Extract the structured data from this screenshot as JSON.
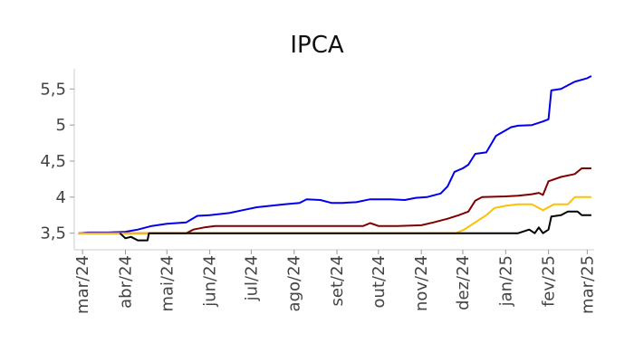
{
  "chart_data": {
    "type": "line",
    "title": "IPCA",
    "xlabel": "",
    "ylabel": "",
    "x_ticks": [
      "mar/24",
      "abr/24",
      "mai/24",
      "jun/24",
      "jul/24",
      "ago/24",
      "set/24",
      "out/24",
      "nov/24",
      "dez/24",
      "jan/25",
      "fev/25",
      "mar/25"
    ],
    "y_ticks": [
      {
        "value": 3.5,
        "label": "3,5"
      },
      {
        "value": 4.0,
        "label": "4"
      },
      {
        "value": 4.5,
        "label": "4,5"
      },
      {
        "value": 5.0,
        "label": "5"
      },
      {
        "value": 5.5,
        "label": "5,5"
      }
    ],
    "xlim": [
      "2024-02-24",
      "2025-03-06"
    ],
    "ylim": [
      3.27,
      5.78
    ],
    "grid": false,
    "legend": "none",
    "series": [
      {
        "color": "#0000ee",
        "points": [
          [
            "2024-02-27",
            3.5
          ],
          [
            "2024-03-05",
            3.51
          ],
          [
            "2024-03-20",
            3.51
          ],
          [
            "2024-04-01",
            3.52
          ],
          [
            "2024-04-10",
            3.55
          ],
          [
            "2024-04-20",
            3.6
          ],
          [
            "2024-05-01",
            3.63
          ],
          [
            "2024-05-15",
            3.65
          ],
          [
            "2024-05-23",
            3.74
          ],
          [
            "2024-06-01",
            3.75
          ],
          [
            "2024-06-15",
            3.78
          ],
          [
            "2024-06-25",
            3.82
          ],
          [
            "2024-07-05",
            3.86
          ],
          [
            "2024-07-15",
            3.88
          ],
          [
            "2024-07-25",
            3.9
          ],
          [
            "2024-08-05",
            3.92
          ],
          [
            "2024-08-10",
            3.97
          ],
          [
            "2024-08-20",
            3.96
          ],
          [
            "2024-08-28",
            3.92
          ],
          [
            "2024-09-05",
            3.92
          ],
          [
            "2024-09-15",
            3.93
          ],
          [
            "2024-09-25",
            3.97
          ],
          [
            "2024-10-10",
            3.97
          ],
          [
            "2024-10-20",
            3.96
          ],
          [
            "2024-10-28",
            3.99
          ],
          [
            "2024-11-05",
            4.0
          ],
          [
            "2024-11-15",
            4.05
          ],
          [
            "2024-11-20",
            4.15
          ],
          [
            "2024-11-25",
            4.35
          ],
          [
            "2024-12-01",
            4.4
          ],
          [
            "2024-12-05",
            4.45
          ],
          [
            "2024-12-10",
            4.6
          ],
          [
            "2024-12-18",
            4.62
          ],
          [
            "2024-12-25",
            4.85
          ],
          [
            "2025-01-05",
            4.97
          ],
          [
            "2025-01-10",
            4.99
          ],
          [
            "2025-01-20",
            5.0
          ],
          [
            "2025-01-28",
            5.05
          ],
          [
            "2025-02-01",
            5.08
          ],
          [
            "2025-02-03",
            5.48
          ],
          [
            "2025-02-10",
            5.5
          ],
          [
            "2025-02-15",
            5.55
          ],
          [
            "2025-02-20",
            5.6
          ],
          [
            "2025-03-01",
            5.65
          ],
          [
            "2025-03-04",
            5.68
          ]
        ]
      },
      {
        "color": "#800000",
        "points": [
          [
            "2024-02-27",
            3.5
          ],
          [
            "2024-05-01",
            3.5
          ],
          [
            "2024-05-15",
            3.5
          ],
          [
            "2024-05-20",
            3.55
          ],
          [
            "2024-05-28",
            3.58
          ],
          [
            "2024-06-05",
            3.6
          ],
          [
            "2024-06-15",
            3.6
          ],
          [
            "2024-07-01",
            3.6
          ],
          [
            "2024-08-01",
            3.6
          ],
          [
            "2024-09-01",
            3.6
          ],
          [
            "2024-09-20",
            3.6
          ],
          [
            "2024-09-25",
            3.64
          ],
          [
            "2024-10-01",
            3.6
          ],
          [
            "2024-10-15",
            3.6
          ],
          [
            "2024-11-01",
            3.61
          ],
          [
            "2024-11-10",
            3.65
          ],
          [
            "2024-11-20",
            3.7
          ],
          [
            "2024-11-28",
            3.75
          ],
          [
            "2024-12-05",
            3.8
          ],
          [
            "2024-12-10",
            3.95
          ],
          [
            "2024-12-15",
            4.0
          ],
          [
            "2025-01-01",
            4.01
          ],
          [
            "2025-01-10",
            4.02
          ],
          [
            "2025-01-20",
            4.04
          ],
          [
            "2025-01-25",
            4.06
          ],
          [
            "2025-01-28",
            4.03
          ],
          [
            "2025-02-01",
            4.22
          ],
          [
            "2025-02-10",
            4.28
          ],
          [
            "2025-02-20",
            4.32
          ],
          [
            "2025-02-25",
            4.4
          ],
          [
            "2025-03-04",
            4.4
          ]
        ]
      },
      {
        "color": "#ffc000",
        "points": [
          [
            "2024-02-27",
            3.5
          ],
          [
            "2024-05-01",
            3.5
          ],
          [
            "2024-08-01",
            3.5
          ],
          [
            "2024-11-01",
            3.5
          ],
          [
            "2024-11-26",
            3.5
          ],
          [
            "2024-12-02",
            3.55
          ],
          [
            "2024-12-10",
            3.65
          ],
          [
            "2024-12-18",
            3.75
          ],
          [
            "2024-12-24",
            3.85
          ],
          [
            "2025-01-01",
            3.88
          ],
          [
            "2025-01-10",
            3.9
          ],
          [
            "2025-01-20",
            3.9
          ],
          [
            "2025-01-28",
            3.82
          ],
          [
            "2025-02-01",
            3.86
          ],
          [
            "2025-02-05",
            3.9
          ],
          [
            "2025-02-15",
            3.9
          ],
          [
            "2025-02-20",
            4.0
          ],
          [
            "2025-03-04",
            4.0
          ]
        ]
      },
      {
        "color": "#000000",
        "points": [
          [
            "2024-03-28",
            3.5
          ],
          [
            "2024-04-01",
            3.43
          ],
          [
            "2024-04-05",
            3.45
          ],
          [
            "2024-04-10",
            3.4
          ],
          [
            "2024-04-17",
            3.4
          ],
          [
            "2024-04-18",
            3.5
          ],
          [
            "2024-05-15",
            3.5
          ],
          [
            "2024-08-01",
            3.5
          ],
          [
            "2024-11-01",
            3.5
          ],
          [
            "2024-12-01",
            3.5
          ],
          [
            "2025-01-10",
            3.5
          ],
          [
            "2025-01-18",
            3.55
          ],
          [
            "2025-01-22",
            3.5
          ],
          [
            "2025-01-25",
            3.58
          ],
          [
            "2025-01-28",
            3.5
          ],
          [
            "2025-02-01",
            3.55
          ],
          [
            "2025-02-03",
            3.73
          ],
          [
            "2025-02-10",
            3.75
          ],
          [
            "2025-02-15",
            3.8
          ],
          [
            "2025-02-22",
            3.8
          ],
          [
            "2025-02-25",
            3.75
          ],
          [
            "2025-03-04",
            3.75
          ]
        ]
      }
    ]
  }
}
